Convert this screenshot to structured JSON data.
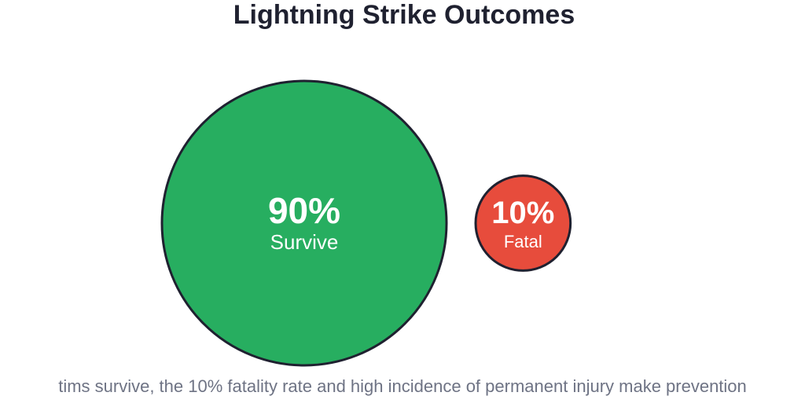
{
  "chart_data": {
    "type": "bubble",
    "title": "Lightning Strike Outcomes",
    "categories": [
      "Survive",
      "Fatal"
    ],
    "values": [
      90,
      10
    ],
    "value_labels": [
      "90%",
      "10%"
    ],
    "colors": [
      "#27ae60",
      "#e74c3c"
    ],
    "outline_color": "#1f2130",
    "caption": "tims survive, the 10% fatality rate and high incidence of permanent injury make prevention"
  }
}
